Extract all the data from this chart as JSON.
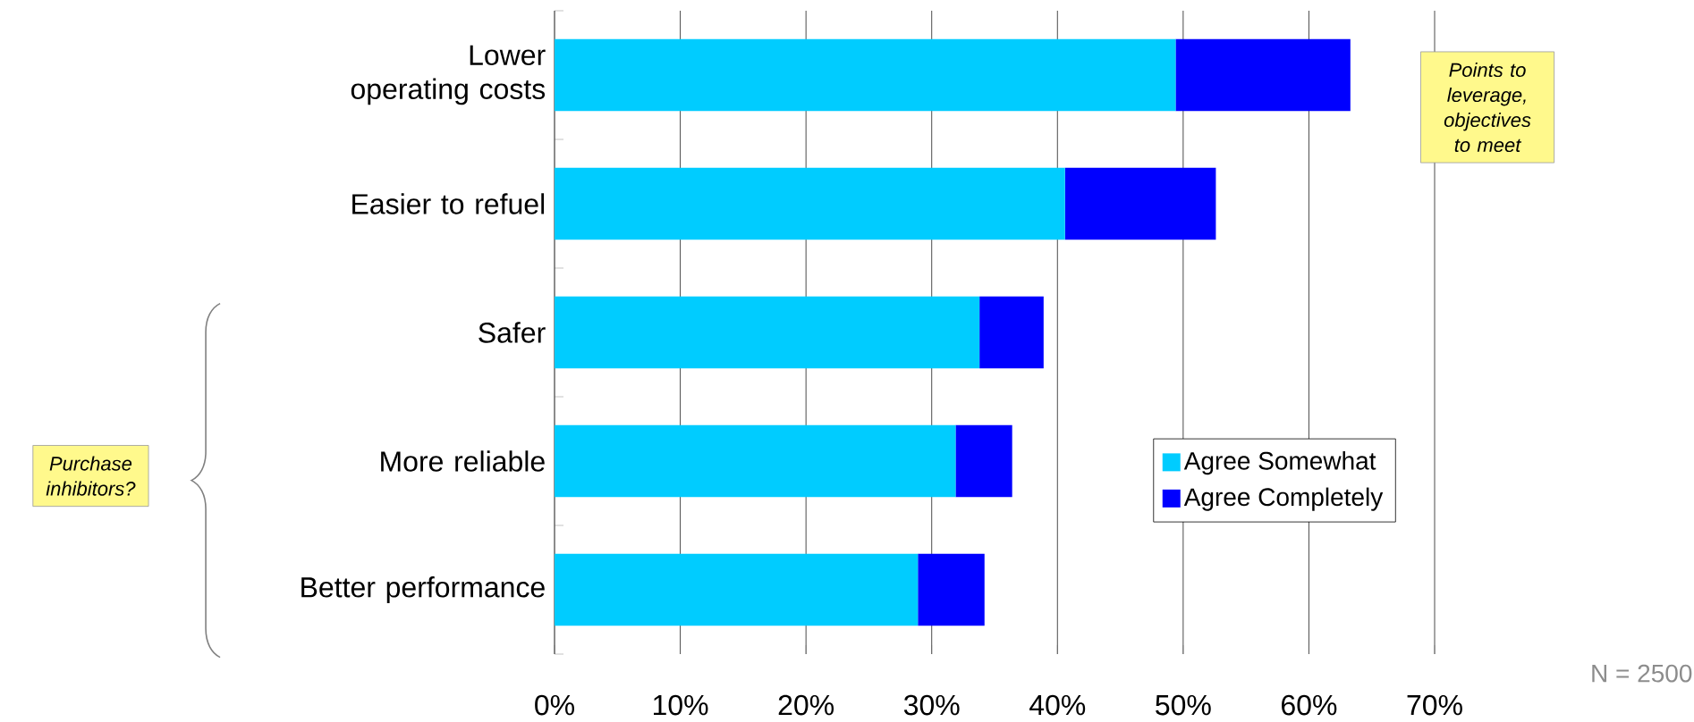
{
  "chart_data": {
    "type": "bar",
    "orientation": "horizontal",
    "stacked": true,
    "categories": [
      "Lower operating costs",
      "Easier to refuel",
      "Safer",
      "More reliable",
      "Better performance"
    ],
    "series": [
      {
        "name": "Agree Somewhat",
        "color": "#00ccff",
        "values": [
          49.4,
          40.6,
          33.8,
          31.9,
          28.9
        ]
      },
      {
        "name": "Agree Completely",
        "color": "#0000ff",
        "values": [
          13.9,
          12.0,
          5.1,
          4.5,
          5.3
        ]
      }
    ],
    "xlim": [
      0,
      70
    ],
    "xticks": [
      {
        "value": 0,
        "label": "0%"
      },
      {
        "value": 10,
        "label": "10%"
      },
      {
        "value": 20,
        "label": "20%"
      },
      {
        "value": 30,
        "label": "30%"
      },
      {
        "value": 40,
        "label": "40%"
      },
      {
        "value": 50,
        "label": "50%"
      },
      {
        "value": 60,
        "label": "60%"
      },
      {
        "value": 70,
        "label": "70%"
      }
    ],
    "grid": "x",
    "legend": "right",
    "annotations": [
      "Points to leverage, objectives to meet",
      "Purchase inhibitors?",
      "N = 2500"
    ]
  }
}
